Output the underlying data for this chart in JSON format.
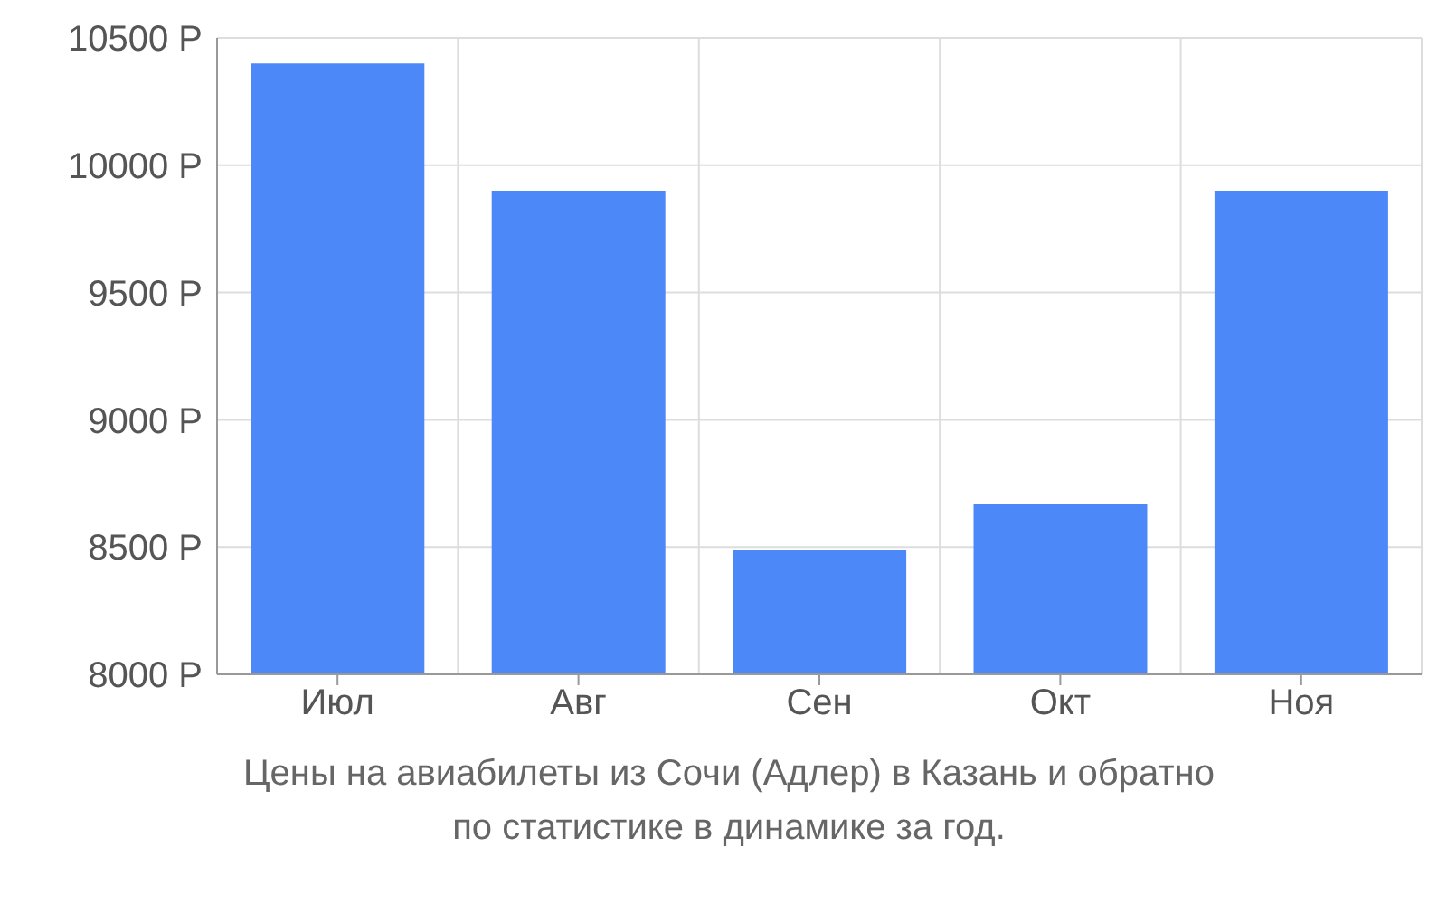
{
  "chart_data": {
    "type": "bar",
    "categories": [
      "Июл",
      "Авг",
      "Сен",
      "Окт",
      "Ноя"
    ],
    "values": [
      10400,
      9900,
      8490,
      8670,
      9900
    ],
    "color": "#4d88f9",
    "ylim": [
      8000,
      10500
    ],
    "yticks": [
      {
        "value": 8000,
        "label": "8000 Р"
      },
      {
        "value": 8500,
        "label": "8500 Р"
      },
      {
        "value": 9000,
        "label": "9000 Р"
      },
      {
        "value": 9500,
        "label": "9500 Р"
      },
      {
        "value": 10000,
        "label": "10000 Р"
      },
      {
        "value": 10500,
        "label": "10500 Р"
      }
    ],
    "grid": true,
    "legend": false,
    "annotations": [
      "Цены на авиабилеты из Сочи (Адлер) в Казань и обратно",
      "по статистике в динамике за год."
    ]
  }
}
